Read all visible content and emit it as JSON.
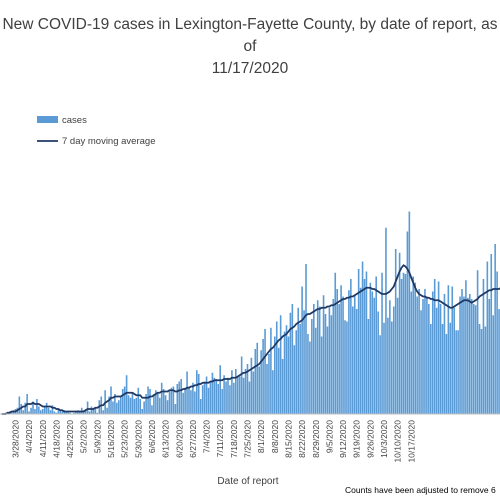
{
  "chart_data": {
    "type": "bar",
    "title": "New COVID-19 cases in Lexington-Fayette County, by date of report, as of\n11/17/2020",
    "xlabel": "Date of report",
    "ylabel": "",
    "legend": {
      "placement": "top-left",
      "items": [
        {
          "name": "cases",
          "kind": "bar",
          "color": "#5b9bd5"
        },
        {
          "name": "7 day moving average",
          "kind": "line",
          "color": "#1f3864"
        }
      ]
    },
    "x_tick_labels": [
      "3/28/2020",
      "4/4/2020",
      "4/11/2020",
      "4/18/2020",
      "4/25/2020",
      "5/2/2020",
      "5/9/2020",
      "5/16/2020",
      "5/23/2020",
      "5/30/2020",
      "6/6/2020",
      "6/13/2020",
      "6/20/2020",
      "6/27/2020",
      "7/4/2020",
      "7/11/2020",
      "7/18/2020",
      "7/25/2020",
      "8/1/2020",
      "8/8/2020",
      "8/15/2020",
      "8/22/2020",
      "8/29/2020",
      "9/5/2020",
      "9/12/2020",
      "9/19/2020",
      "9/26/2020",
      "10/3/2020",
      "10/10/2020",
      "10/17/2020"
    ],
    "start_date": "2020-03-21",
    "series": [
      {
        "name": "cases",
        "color": "#5b9bd5",
        "values": [
          0,
          0,
          1,
          1,
          2,
          2,
          3,
          4,
          5,
          14,
          8,
          3,
          9,
          16,
          2,
          5,
          10,
          4,
          12,
          6,
          3,
          4,
          6,
          9,
          5,
          3,
          7,
          2,
          1,
          4,
          3,
          2,
          3,
          2,
          2,
          1,
          0,
          1,
          2,
          3,
          2,
          5,
          3,
          4,
          10,
          2,
          6,
          4,
          5,
          1,
          11,
          14,
          3,
          19,
          5,
          14,
          22,
          10,
          16,
          9,
          11,
          14,
          20,
          22,
          31,
          15,
          13,
          17,
          12,
          13,
          21,
          12,
          4,
          10,
          16,
          22,
          20,
          7,
          16,
          19,
          17,
          13,
          25,
          20,
          15,
          11,
          18,
          21,
          22,
          8,
          24,
          26,
          28,
          17,
          21,
          34,
          22,
          19,
          25,
          18,
          35,
          32,
          12,
          23,
          26,
          30,
          21,
          26,
          33,
          29,
          28,
          24,
          39,
          20,
          31,
          26,
          29,
          23,
          35,
          25,
          36,
          30,
          30,
          46,
          29,
          36,
          40,
          26,
          45,
          34,
          52,
          57,
          38,
          51,
          60,
          68,
          40,
          48,
          69,
          35,
          62,
          74,
          53,
          79,
          44,
          66,
          71,
          62,
          81,
          88,
          55,
          67,
          85,
          72,
          102,
          83,
          120,
          64,
          58,
          76,
          88,
          69,
          91,
          86,
          62,
          95,
          80,
          70,
          85,
          79,
          92,
          113,
          100,
          88,
          103,
          94,
          75,
          74,
          99,
          108,
          86,
          95,
          84,
          116,
          101,
          122,
          108,
          114,
          76,
          105,
          98,
          93,
          110,
          82,
          63,
          113,
          73,
          149,
          77,
          91,
          74,
          86,
          132,
          93,
          129,
          108,
          113,
          112,
          146,
          162,
          98,
          110,
          105,
          94,
          100,
          83,
          92,
          100,
          94,
          88,
          72,
          98,
          108,
          85,
          106,
          88,
          72,
          96,
          64,
          103,
          73,
          102,
          85,
          67,
          67,
          94,
          100,
          94,
          107,
          93,
          96,
          92,
          88,
          87,
          115,
          72,
          68,
          108,
          70,
          122,
          92,
          128,
          79,
          136,
          114,
          84,
          97,
          108,
          80,
          86,
          120,
          97,
          92,
          85,
          102
        ]
      },
      {
        "name": "7 day moving average",
        "color": "#1f3864",
        "values": [
          0,
          0,
          0,
          1,
          1,
          2,
          2,
          2,
          3,
          4,
          5,
          6,
          6,
          8,
          8,
          8,
          9,
          8,
          8,
          8,
          7,
          6,
          6,
          6,
          6,
          6,
          5,
          5,
          4,
          4,
          3,
          3,
          2,
          2,
          2,
          2,
          2,
          2,
          2,
          2,
          2,
          2,
          2,
          3,
          4,
          4,
          4,
          4,
          5,
          5,
          6,
          7,
          7,
          9,
          10,
          11,
          13,
          13,
          14,
          14,
          14,
          14,
          15,
          16,
          17,
          17,
          17,
          17,
          16,
          15,
          15,
          15,
          13,
          13,
          13,
          13,
          14,
          14,
          15,
          16,
          17,
          17,
          18,
          18,
          18,
          18,
          19,
          19,
          19,
          18,
          18,
          19,
          19,
          20,
          20,
          21,
          21,
          22,
          22,
          23,
          23,
          24,
          24,
          25,
          25,
          25,
          25,
          26,
          26,
          27,
          27,
          27,
          27,
          27,
          28,
          28,
          28,
          28,
          29,
          29,
          29,
          30,
          31,
          32,
          33,
          33,
          34,
          35,
          36,
          37,
          38,
          39,
          40,
          42,
          44,
          46,
          48,
          50,
          52,
          53,
          55,
          57,
          59,
          60,
          62,
          63,
          64,
          66,
          68,
          69,
          70,
          72,
          73,
          74,
          75,
          77,
          79,
          80,
          80,
          81,
          82,
          83,
          84,
          84,
          85,
          85,
          85,
          86,
          86,
          87,
          87,
          88,
          89,
          90,
          91,
          92,
          92,
          93,
          93,
          94,
          94,
          95,
          96,
          97,
          98,
          99,
          100,
          101,
          101,
          101,
          100,
          100,
          99,
          98,
          97,
          96,
          96,
          96,
          97,
          98,
          100,
          102,
          106,
          110,
          114,
          117,
          119,
          118,
          116,
          113,
          109,
          105,
          101,
          98,
          96,
          95,
          94,
          94,
          93,
          93,
          92,
          92,
          91,
          91,
          91,
          90,
          89,
          88,
          87,
          86,
          85,
          85,
          86,
          87,
          88,
          89,
          90,
          91,
          91,
          91,
          90,
          89,
          90,
          91,
          92,
          94,
          95,
          96,
          97,
          98,
          99,
          99,
          100,
          100,
          100,
          100,
          101,
          101
        ]
      }
    ],
    "footnote": "Counts have been adjusted to remove 6"
  }
}
